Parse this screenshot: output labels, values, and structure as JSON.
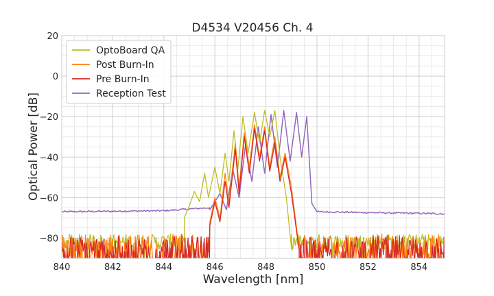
{
  "chart_data": {
    "type": "line",
    "title": "D4534 V20456 Ch. 4",
    "xlabel": "Wavelength [nm]",
    "ylabel": "Optical Power [dB]",
    "xlim": [
      840,
      855
    ],
    "ylim": [
      -90,
      20
    ],
    "xticks": [
      840,
      842,
      844,
      846,
      848,
      850,
      852,
      854
    ],
    "yticks": [
      20,
      0,
      -20,
      -40,
      -60,
      -80
    ],
    "ytick_labels": [
      "20",
      "0",
      "−20",
      "−40",
      "−60",
      "−80"
    ],
    "grid": true,
    "legend_position": "top-left",
    "series": [
      {
        "name": "OptoBoard QA",
        "color": "#bcbd22",
        "floor_start": 840,
        "floor_end": 844.8,
        "floor_level": -82,
        "noise_start": 849.0,
        "noise_end": 855,
        "points": [
          [
            844.8,
            -70
          ],
          [
            845.0,
            -64
          ],
          [
            845.2,
            -57
          ],
          [
            845.4,
            -62
          ],
          [
            845.6,
            -48
          ],
          [
            845.75,
            -60
          ],
          [
            846.0,
            -45
          ],
          [
            846.2,
            -58
          ],
          [
            846.4,
            -38
          ],
          [
            846.55,
            -52
          ],
          [
            846.75,
            -27
          ],
          [
            846.9,
            -46
          ],
          [
            847.1,
            -20
          ],
          [
            847.3,
            -38
          ],
          [
            847.55,
            -18
          ],
          [
            847.75,
            -33
          ],
          [
            847.95,
            -17
          ],
          [
            848.15,
            -30
          ],
          [
            848.35,
            -17
          ],
          [
            848.55,
            -40
          ],
          [
            848.8,
            -60
          ],
          [
            849.0,
            -85
          ]
        ]
      },
      {
        "name": "Post Burn-In",
        "color": "#ff7f0e",
        "floor_start": 840,
        "floor_end": 845.8,
        "floor_level": -85,
        "noise_start": 849.3,
        "noise_end": 855,
        "points": [
          [
            845.8,
            -72
          ],
          [
            846.0,
            -60
          ],
          [
            846.2,
            -70
          ],
          [
            846.4,
            -48
          ],
          [
            846.55,
            -62
          ],
          [
            846.8,
            -33
          ],
          [
            846.95,
            -55
          ],
          [
            847.15,
            -28
          ],
          [
            847.35,
            -45
          ],
          [
            847.55,
            -24
          ],
          [
            847.75,
            -40
          ],
          [
            847.95,
            -25
          ],
          [
            848.15,
            -45
          ],
          [
            848.35,
            -30
          ],
          [
            848.55,
            -50
          ],
          [
            848.75,
            -38
          ],
          [
            849.0,
            -55
          ],
          [
            849.3,
            -85
          ]
        ]
      },
      {
        "name": "Pre Burn-In",
        "color": "#d62728",
        "floor_start": 840,
        "floor_end": 845.8,
        "floor_level": -86,
        "noise_start": 849.3,
        "noise_end": 855,
        "points": [
          [
            845.8,
            -74
          ],
          [
            846.0,
            -62
          ],
          [
            846.2,
            -72
          ],
          [
            846.4,
            -52
          ],
          [
            846.55,
            -65
          ],
          [
            846.8,
            -36
          ],
          [
            846.95,
            -58
          ],
          [
            847.15,
            -30
          ],
          [
            847.35,
            -48
          ],
          [
            847.55,
            -26
          ],
          [
            847.75,
            -42
          ],
          [
            847.95,
            -27
          ],
          [
            848.15,
            -47
          ],
          [
            848.35,
            -33
          ],
          [
            848.55,
            -52
          ],
          [
            848.75,
            -40
          ],
          [
            849.0,
            -58
          ],
          [
            849.3,
            -86
          ]
        ]
      },
      {
        "name": "Reception Test",
        "color": "#9467bd",
        "baseline": [
          [
            840,
            -67
          ],
          [
            844,
            -66.5
          ],
          [
            845.8,
            -65
          ],
          [
            849.55,
            -65
          ],
          [
            850.0,
            -67
          ],
          [
            855,
            -68
          ]
        ],
        "points": [
          [
            845.8,
            -66
          ],
          [
            846.2,
            -58
          ],
          [
            846.45,
            -66
          ],
          [
            846.7,
            -46
          ],
          [
            846.95,
            -60
          ],
          [
            847.2,
            -34
          ],
          [
            847.45,
            -52
          ],
          [
            847.7,
            -25
          ],
          [
            847.95,
            -48
          ],
          [
            848.2,
            -19
          ],
          [
            848.45,
            -45
          ],
          [
            848.7,
            -17
          ],
          [
            848.95,
            -42
          ],
          [
            849.2,
            -18
          ],
          [
            849.4,
            -40
          ],
          [
            849.6,
            -20
          ],
          [
            849.8,
            -63
          ],
          [
            850.0,
            -67
          ]
        ]
      }
    ]
  }
}
